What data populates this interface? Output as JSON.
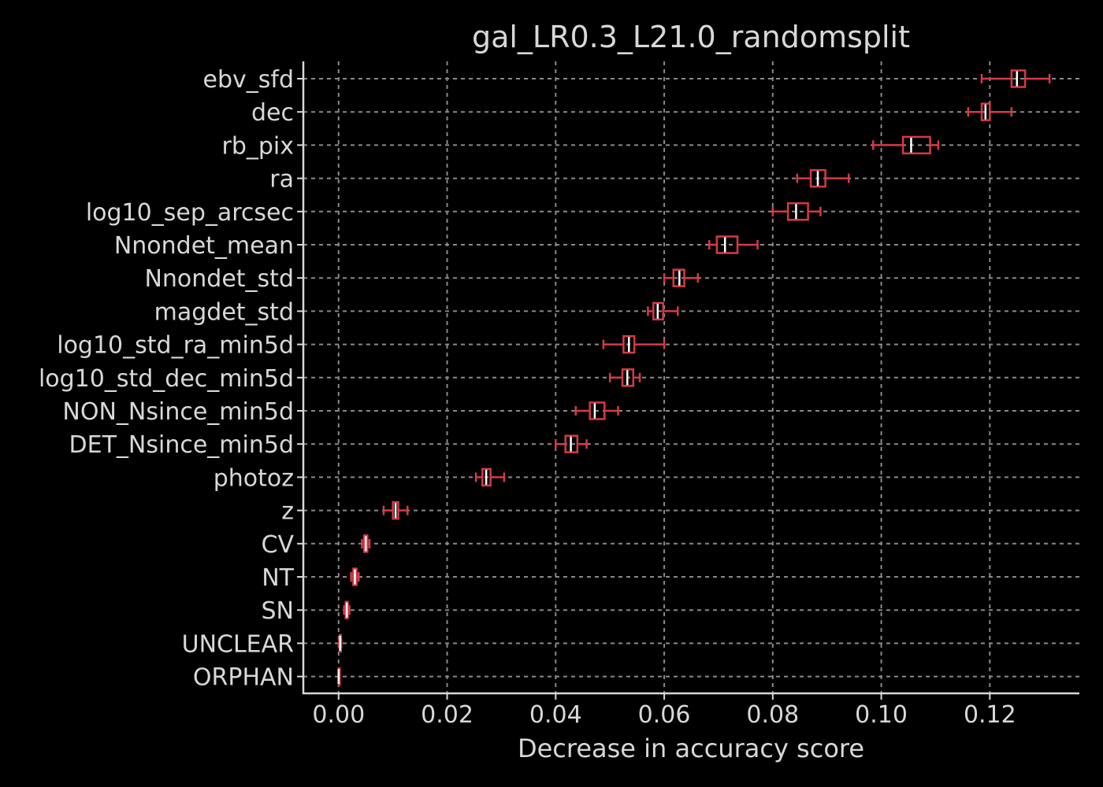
{
  "chart_data": {
    "type": "boxplot",
    "orientation": "horizontal",
    "title": "gal_LR0.3_L21.0_randomsplit",
    "xlabel": "Decrease in accuracy score",
    "ylabel": "",
    "xlim": [
      -0.0065,
      0.1365
    ],
    "xticks": [
      0.0,
      0.02,
      0.04,
      0.06,
      0.08,
      0.1,
      0.12
    ],
    "xtick_labels": [
      "0.00",
      "0.02",
      "0.04",
      "0.06",
      "0.08",
      "0.10",
      "0.12"
    ],
    "grid": true,
    "colors": {
      "background": "#000000",
      "box": "#d63a46",
      "median": "#ffffff",
      "grid": "#8a8a8a",
      "axis": "#d8d8d8",
      "text": "#d8d8d8"
    },
    "categories": [
      "ebv_sfd",
      "dec",
      "rb_pix",
      "ra",
      "log10_sep_arcsec",
      "Nnondet_mean",
      "Nnondet_std",
      "magdet_std",
      "log10_std_ra_min5d",
      "log10_std_dec_min5d",
      "NON_Nsince_min5d",
      "DET_Nsince_min5d",
      "photoz",
      "z",
      "CV",
      "NT",
      "SN",
      "UNCLEAR",
      "ORPHAN"
    ],
    "boxes": [
      {
        "label": "ebv_sfd",
        "whislo": 0.1185,
        "q1": 0.124,
        "med": 0.125,
        "q3": 0.1265,
        "whishi": 0.131
      },
      {
        "label": "dec",
        "whislo": 0.116,
        "q1": 0.1185,
        "med": 0.1192,
        "q3": 0.12,
        "whishi": 0.124
      },
      {
        "label": "rb_pix",
        "whislo": 0.0985,
        "q1": 0.104,
        "med": 0.1055,
        "q3": 0.109,
        "whishi": 0.1105
      },
      {
        "label": "ra",
        "whislo": 0.0845,
        "q1": 0.087,
        "med": 0.0883,
        "q3": 0.0897,
        "whishi": 0.094
      },
      {
        "label": "log10_sep_arcsec",
        "whislo": 0.08,
        "q1": 0.0828,
        "med": 0.0843,
        "q3": 0.0865,
        "whishi": 0.0888
      },
      {
        "label": "Nnondet_mean",
        "whislo": 0.0683,
        "q1": 0.0697,
        "med": 0.0712,
        "q3": 0.0735,
        "whishi": 0.0772
      },
      {
        "label": "Nnondet_std",
        "whislo": 0.06,
        "q1": 0.0617,
        "med": 0.0628,
        "q3": 0.0637,
        "whishi": 0.0662
      },
      {
        "label": "magdet_std",
        "whislo": 0.057,
        "q1": 0.058,
        "med": 0.0588,
        "q3": 0.0598,
        "whishi": 0.0625
      },
      {
        "label": "log10_std_ra_min5d",
        "whislo": 0.0488,
        "q1": 0.0525,
        "med": 0.0535,
        "q3": 0.0545,
        "whishi": 0.06
      },
      {
        "label": "log10_std_dec_min5d",
        "whislo": 0.05,
        "q1": 0.0523,
        "med": 0.0532,
        "q3": 0.0543,
        "whishi": 0.0555
      },
      {
        "label": "NON_Nsince_min5d",
        "whislo": 0.0437,
        "q1": 0.0463,
        "med": 0.0472,
        "q3": 0.049,
        "whishi": 0.0515
      },
      {
        "label": "DET_Nsince_min5d",
        "whislo": 0.04,
        "q1": 0.0418,
        "med": 0.0428,
        "q3": 0.044,
        "whishi": 0.0457
      },
      {
        "label": "photoz",
        "whislo": 0.0253,
        "q1": 0.0265,
        "med": 0.0272,
        "q3": 0.028,
        "whishi": 0.0305
      },
      {
        "label": "z",
        "whislo": 0.0083,
        "q1": 0.01,
        "med": 0.0105,
        "q3": 0.011,
        "whishi": 0.0127
      },
      {
        "label": "CV",
        "whislo": 0.0043,
        "q1": 0.0047,
        "med": 0.005,
        "q3": 0.0053,
        "whishi": 0.0057
      },
      {
        "label": "NT",
        "whislo": 0.0023,
        "q1": 0.0027,
        "med": 0.003,
        "q3": 0.0033,
        "whishi": 0.0037
      },
      {
        "label": "SN",
        "whislo": 0.001,
        "q1": 0.0013,
        "med": 0.0015,
        "q3": 0.0017,
        "whishi": 0.002
      },
      {
        "label": "UNCLEAR",
        "whislo": 0.0001,
        "q1": 0.0002,
        "med": 0.0003,
        "q3": 0.0004,
        "whishi": 0.0005
      },
      {
        "label": "ORPHAN",
        "whislo": 0.0,
        "q1": 0.0,
        "med": 0.0,
        "q3": 0.0,
        "whishi": 0.0
      }
    ]
  }
}
